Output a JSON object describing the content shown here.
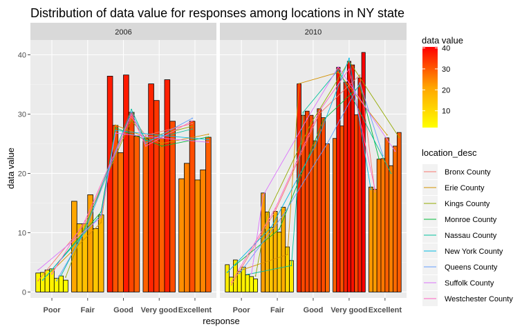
{
  "chart_data": {
    "type": "bar",
    "title": "Distribution of data value for responses among locations in NY state",
    "xlabel": "response",
    "ylabel": "data value",
    "ylim": [
      -1,
      42.5
    ],
    "y_ticks": [
      0,
      10,
      20,
      30,
      40
    ],
    "categories": [
      "Poor",
      "Fair",
      "Good",
      "Very good",
      "Excellent"
    ],
    "colorbar": {
      "title": "data value",
      "ticks": [
        10,
        20,
        30,
        40
      ],
      "range": [
        2,
        40.5
      ],
      "low": "#ffff00",
      "high": "#ff0000"
    },
    "series_names": [
      "Bronx County",
      "Erie County",
      "Kings County",
      "Monroe County",
      "Nassau County",
      "New York County",
      "Queens County",
      "Suffolk County",
      "Westchester County"
    ],
    "series_colors": [
      "#F8766D",
      "#D39200",
      "#93AA00",
      "#00BA38",
      "#00C19F",
      "#00B9E3",
      "#619CFF",
      "#DB72FB",
      "#FF61C3"
    ],
    "legend_title": "location_desc",
    "panels": [
      {
        "name": "2006",
        "bars": [
          [
            3.2,
            3.3,
            3.7,
            3.9,
            2.3,
            2.7,
            2.0
          ],
          [
            15.3,
            11.5,
            11.5,
            16.4,
            10.7,
            13.0
          ],
          [
            36.4,
            28.1,
            23.5,
            36.6,
            30.3,
            26.3
          ],
          [
            25.9,
            35.1,
            32.3,
            25.9,
            35.8,
            28.8
          ],
          [
            19.1,
            21.7,
            28.8,
            18.9,
            20.6,
            26.1
          ]
        ]
      },
      {
        "name": "2010",
        "bars": [
          [
            4.6,
            2.5,
            5.4,
            3.5,
            4.2,
            2.9,
            2.6,
            2.2
          ],
          [
            16.7,
            13.5,
            10.9,
            13.6,
            10.1,
            14.3,
            7.6,
            5.3
          ],
          [
            35.1,
            29.8,
            30.5,
            29.8,
            25.5,
            30.9,
            29.4,
            25.0
          ],
          [
            25.9,
            37.9,
            28.0,
            35.4,
            38.9,
            38.3,
            29.9,
            36.1,
            40.4
          ],
          [
            17.7,
            17.3,
            22.4,
            22.5,
            26.0,
            21.3,
            24.6,
            26.9
          ]
        ]
      }
    ]
  }
}
